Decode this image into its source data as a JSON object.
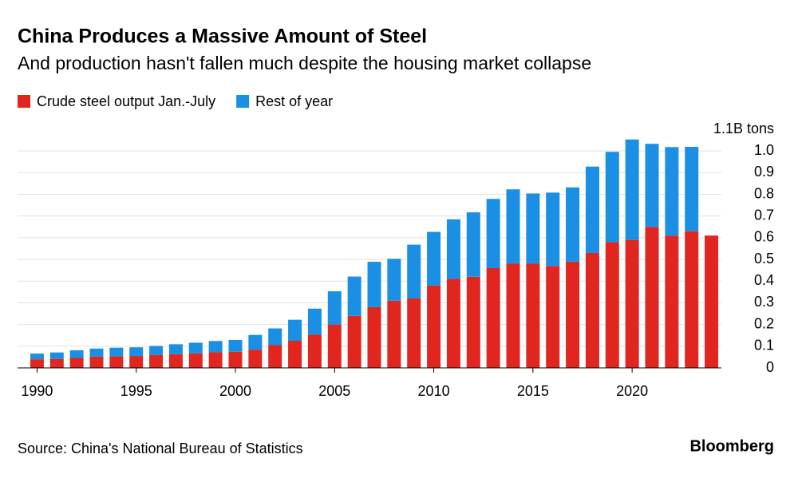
{
  "chart_data": {
    "type": "stacked-bar",
    "title": "China Produces a Massive Amount of Steel",
    "subtitle": "And production hasn't fallen much despite the housing market collapse",
    "source": "Source: China's National Bureau of Statistics",
    "brand": "Bloomberg",
    "x": [
      1990,
      1991,
      1992,
      1993,
      1994,
      1995,
      1996,
      1997,
      1998,
      1999,
      2000,
      2001,
      2002,
      2003,
      2004,
      2005,
      2006,
      2007,
      2008,
      2009,
      2010,
      2011,
      2012,
      2013,
      2014,
      2015,
      2016,
      2017,
      2018,
      2019,
      2020,
      2021,
      2022,
      2023,
      2024
    ],
    "series": [
      {
        "name": "Crude steel output Jan.-July",
        "color": "#e0261e",
        "values": [
          0.04,
          0.041,
          0.046,
          0.052,
          0.054,
          0.055,
          0.059,
          0.063,
          0.067,
          0.072,
          0.074,
          0.084,
          0.105,
          0.125,
          0.153,
          0.2,
          0.24,
          0.28,
          0.31,
          0.32,
          0.38,
          0.41,
          0.42,
          0.46,
          0.48,
          0.48,
          0.47,
          0.49,
          0.53,
          0.58,
          0.59,
          0.65,
          0.61,
          0.63,
          0.61
        ]
      },
      {
        "name": "Rest of year",
        "color": "#1a8fe3",
        "values": [
          0.026,
          0.03,
          0.035,
          0.037,
          0.039,
          0.04,
          0.042,
          0.046,
          0.049,
          0.052,
          0.055,
          0.068,
          0.077,
          0.097,
          0.12,
          0.153,
          0.181,
          0.209,
          0.193,
          0.248,
          0.247,
          0.275,
          0.297,
          0.319,
          0.343,
          0.324,
          0.338,
          0.342,
          0.398,
          0.416,
          0.463,
          0.383,
          0.408,
          0.389,
          null
        ]
      }
    ],
    "xlim": [
      1989.5,
      2024.5
    ],
    "xticks": [
      1990,
      1995,
      2000,
      2005,
      2010,
      2015,
      2020
    ],
    "ylim": [
      0,
      1.1
    ],
    "yticks": [
      0,
      0.1,
      0.2,
      0.3,
      0.4,
      0.5,
      0.6,
      0.7,
      0.8,
      0.9,
      {
        "value": 1.0,
        "label": "1.0"
      },
      {
        "value": 1.1,
        "label": "1.1B tons"
      }
    ],
    "grid": true
  }
}
